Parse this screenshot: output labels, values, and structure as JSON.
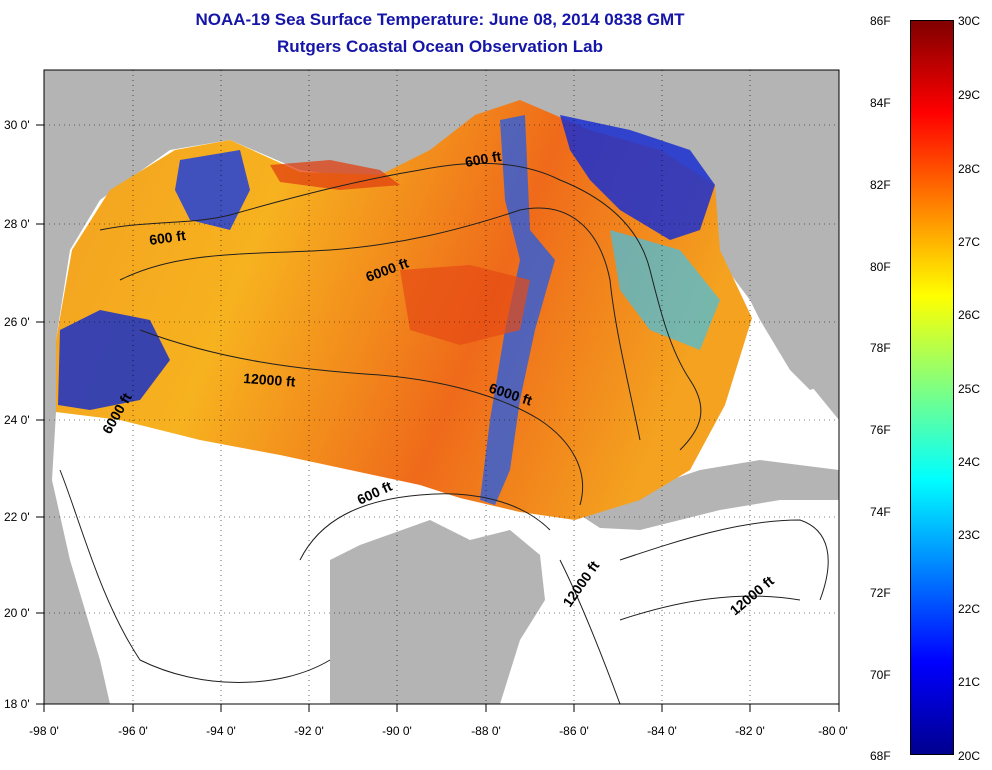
{
  "title": {
    "line1": "NOAA-19 Sea Surface Temperature:  June 08, 2014 0838 GMT",
    "line2": "Rutgers Coastal Ocean Observation Lab"
  },
  "axes": {
    "lon_labels": [
      "-98 0'",
      "-96 0'",
      "-94 0'",
      "-92 0'",
      "-90 0'",
      "-88 0'",
      "-86 0'",
      "-84 0'",
      "-82 0'",
      "-80 0'"
    ],
    "lat_labels": [
      "30 0'",
      "28 0'",
      "26 0'",
      "24 0'",
      "22 0'",
      "20 0'",
      "18 0'"
    ]
  },
  "contour_labels": [
    "600 ft",
    "600 ft",
    "6000 ft",
    "12000 ft",
    "6000 ft",
    "6000 ft",
    "600 ft",
    "12000 ft",
    "12000 ft"
  ],
  "colorbar": {
    "fahrenheit": [
      "86F",
      "84F",
      "82F",
      "80F",
      "78F",
      "76F",
      "74F",
      "72F",
      "70F",
      "68F"
    ],
    "celsius": [
      "30C",
      "29C",
      "28C",
      "27C",
      "26C",
      "25C",
      "24C",
      "23C",
      "22C",
      "21C",
      "20C"
    ],
    "colors": [
      "#00008f",
      "#0000ff",
      "#0080ff",
      "#00ffff",
      "#80ff80",
      "#ffff00",
      "#ff8000",
      "#ff0000",
      "#800000"
    ]
  },
  "colors": {
    "land": "#b4b4b4",
    "nodata": "#ffffff",
    "title": "#1515a8"
  }
}
